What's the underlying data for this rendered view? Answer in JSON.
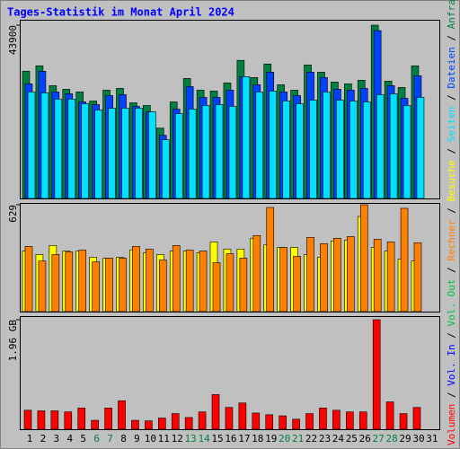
{
  "chart_data": [
    {
      "type": "bar",
      "title": "Tages-Statistik im Monat April 2024",
      "ylim": [
        0,
        43900
      ],
      "yticks": [
        43900
      ],
      "series": [
        {
          "name": "Anfragen",
          "color": "#008040",
          "values": [
            32240,
            33600,
            28580,
            27660,
            26980,
            24690,
            27430,
            27890,
            24230,
            23550,
            17830,
            24460,
            30400,
            27430,
            27200,
            29260,
            34980,
            30630,
            34060,
            28800,
            27430,
            33830,
            32000,
            29490,
            29030,
            29950,
            43900,
            29720,
            28120,
            33600,
            null
          ]
        },
        {
          "name": "Dateien",
          "color": "#0040ff",
          "values": [
            29030,
            32230,
            26970,
            26520,
            24460,
            23770,
            26060,
            26290,
            23320,
            21950,
            16000,
            22630,
            28350,
            25600,
            25600,
            27430,
            30860,
            28800,
            32000,
            26970,
            26060,
            32000,
            30630,
            27660,
            27430,
            27890,
            42520,
            28580,
            25370,
            31090,
            null
          ]
        },
        {
          "name": "Seiten",
          "color": "#00e0ff",
          "values": [
            26970,
            26750,
            25150,
            25150,
            24000,
            22400,
            22860,
            22860,
            22860,
            21950,
            14860,
            21490,
            22630,
            23550,
            23770,
            23320,
            30860,
            26970,
            27200,
            24690,
            24000,
            24920,
            26970,
            24920,
            24690,
            24460,
            26290,
            26520,
            23550,
            25600,
            null
          ]
        }
      ]
    },
    {
      "type": "bar",
      "ylim": [
        0,
        629
      ],
      "yticks": [
        629
      ],
      "series": [
        {
          "name": "Besuche",
          "color": "#ffff00",
          "values": [
            357,
            336,
            389,
            357,
            357,
            320,
            315,
            320,
            362,
            346,
            336,
            357,
            357,
            346,
            410,
            368,
            368,
            432,
            394,
            378,
            378,
            336,
            320,
            416,
            421,
            560,
            378,
            357,
            309,
            298,
            null
          ]
        },
        {
          "name": "Rechner",
          "color": "#ff8000",
          "values": [
            384,
            298,
            336,
            352,
            362,
            293,
            315,
            315,
            384,
            368,
            304,
            389,
            362,
            357,
            288,
            341,
            315,
            448,
            613,
            378,
            325,
            437,
            400,
            432,
            442,
            629,
            426,
            410,
            608,
            405,
            null
          ]
        }
      ]
    },
    {
      "type": "bar",
      "ylim": [
        0,
        1.96
      ],
      "yticks": [
        {
          "value": 1.96,
          "label": "1.96 GB"
        }
      ],
      "categories": [
        "1",
        "2",
        "3",
        "4",
        "5",
        "6",
        "7",
        "8",
        "9",
        "10",
        "11",
        "12",
        "13",
        "14",
        "15",
        "16",
        "17",
        "18",
        "19",
        "20",
        "21",
        "22",
        "23",
        "24",
        "25",
        "26",
        "27",
        "28",
        "29",
        "30",
        "31"
      ],
      "highlight_categories": [
        5,
        6,
        12,
        13,
        19,
        20,
        26,
        27
      ],
      "highlight_color": "#008040",
      "series": [
        {
          "name": "Volumen",
          "color": "#ff0000",
          "values": [
            0.34,
            0.33,
            0.33,
            0.31,
            0.38,
            0.16,
            0.38,
            0.51,
            0.16,
            0.15,
            0.2,
            0.28,
            0.21,
            0.31,
            0.62,
            0.39,
            0.47,
            0.29,
            0.26,
            0.24,
            0.18,
            0.28,
            0.38,
            0.34,
            0.31,
            0.31,
            1.96,
            0.49,
            0.28,
            0.39,
            null
          ]
        },
        {
          "name": "Vol. In",
          "color": "#0000ff",
          "values": [
            null,
            null,
            null,
            null,
            null,
            null,
            null,
            null,
            null,
            null,
            null,
            null,
            null,
            null,
            null,
            null,
            null,
            null,
            null,
            null,
            null,
            null,
            null,
            null,
            null,
            null,
            null,
            null,
            null,
            null,
            null
          ]
        },
        {
          "name": "Vol. Out",
          "color": "#00c040",
          "values": [
            null,
            null,
            null,
            null,
            null,
            null,
            null,
            null,
            null,
            null,
            null,
            null,
            null,
            null,
            null,
            null,
            null,
            null,
            null,
            null,
            null,
            null,
            null,
            null,
            null,
            null,
            null,
            null,
            null,
            null,
            null
          ]
        }
      ]
    }
  ]
}
